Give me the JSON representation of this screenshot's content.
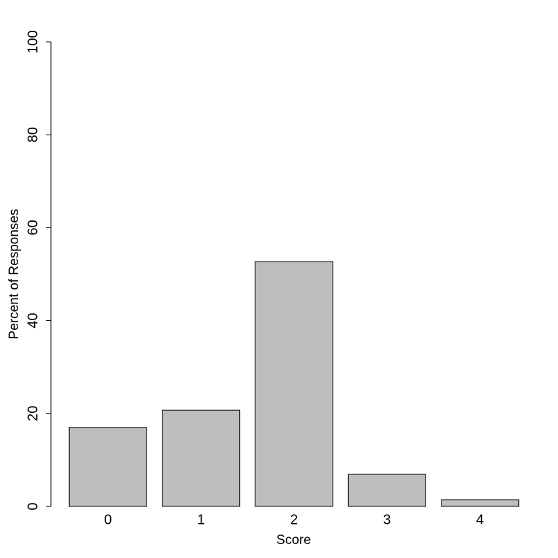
{
  "chart_data": {
    "type": "bar",
    "x_label": "Score",
    "y_label": "Percent of Responses",
    "categories": [
      "0",
      "1",
      "2",
      "3",
      "4"
    ],
    "values": [
      17,
      20.7,
      52.7,
      6.9,
      1.4
    ],
    "color": "#bebebe",
    "ylim": [
      0,
      100
    ],
    "yticks": [
      0,
      20,
      40,
      60,
      80,
      100
    ]
  }
}
